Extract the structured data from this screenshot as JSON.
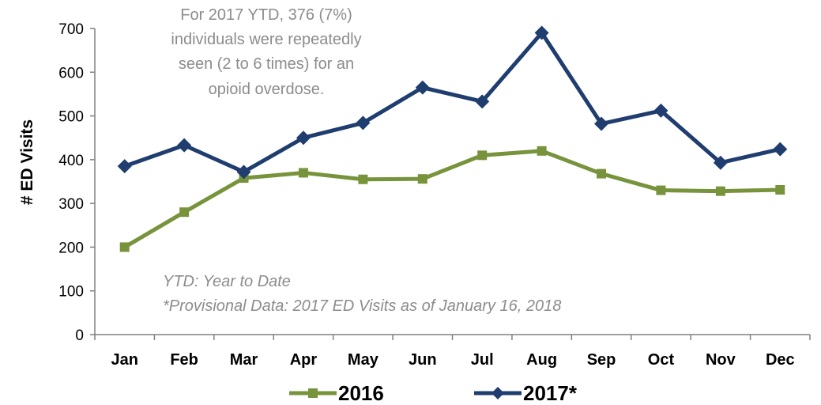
{
  "chart_data": {
    "type": "line",
    "categories": [
      "Jan",
      "Feb",
      "Mar",
      "Apr",
      "May",
      "Jun",
      "Jul",
      "Aug",
      "Sep",
      "Oct",
      "Nov",
      "Dec"
    ],
    "series": [
      {
        "name": "2016",
        "color": "#77933c",
        "marker": "square",
        "values": [
          200,
          280,
          358,
          370,
          355,
          356,
          410,
          420,
          368,
          330,
          328,
          331
        ]
      },
      {
        "name": "2017*",
        "color": "#1f3d6e",
        "marker": "diamond",
        "values": [
          385,
          433,
          372,
          450,
          484,
          565,
          533,
          690,
          482,
          512,
          393,
          424
        ]
      }
    ],
    "ylabel": "# ED Visits",
    "ylim": [
      0,
      700
    ],
    "yticks": [
      0,
      100,
      200,
      300,
      400,
      500,
      600,
      700
    ],
    "grid": false,
    "legend_position": "bottom",
    "annotations": {
      "top_note": [
        "For 2017 YTD, 376 (7%)",
        "individuals were repeatedly",
        "seen (2 to 6 times) for an",
        "opioid overdose."
      ],
      "bottom_note": [
        "YTD: Year to Date",
        "*Provisional Data: 2017 ED Visits as of  January 16, 2018"
      ]
    }
  }
}
